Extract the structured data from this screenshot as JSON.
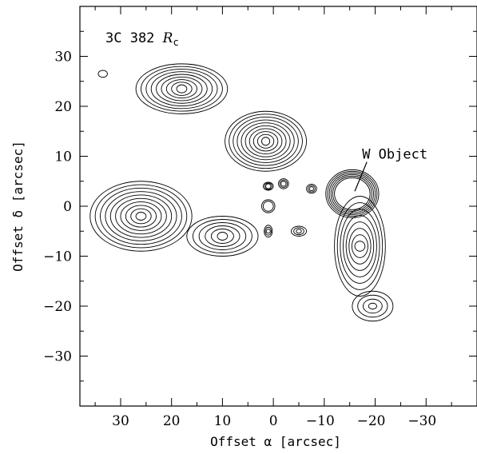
{
  "chart_data": {
    "type": "contour",
    "title_main": "3C 382 ",
    "title_italic": "R",
    "title_sub": "c",
    "xlabel": "Offset α [arcsec]",
    "ylabel": "Offset δ [arcsec]",
    "xlim": [
      38,
      -40
    ],
    "ylim": [
      -40,
      40
    ],
    "xticks_major": [
      30,
      20,
      10,
      0,
      -10,
      -20,
      -30
    ],
    "xticks_labels": [
      "30",
      "20",
      "10",
      "0",
      "−10",
      "−20",
      "−30"
    ],
    "yticks_major": [
      30,
      20,
      10,
      0,
      -10,
      -20,
      -30
    ],
    "yticks_labels": [
      "30",
      "20",
      "10",
      "0",
      "−10",
      "−20",
      "−30"
    ],
    "annotation": {
      "text": "W Object",
      "point": [
        -16,
        3
      ],
      "text_at": [
        -19,
        9.5
      ]
    },
    "features": [
      {
        "name": "NE lobe upper",
        "center": [
          18,
          23.5
        ],
        "rx": [
          1,
          9
        ],
        "ry": [
          0.8,
          5
        ],
        "levels": 9
      },
      {
        "name": "NE lobe knot",
        "center": [
          1.5,
          13
        ],
        "rx": [
          0.8,
          8
        ],
        "ry": [
          0.8,
          6
        ],
        "levels": 10
      },
      {
        "name": "E lobe",
        "center": [
          26,
          -2
        ],
        "rx": [
          1,
          10
        ],
        "ry": [
          0.8,
          7
        ],
        "levels": 10
      },
      {
        "name": "E inner lobe",
        "center": [
          10,
          -6
        ],
        "rx": [
          1,
          7
        ],
        "ry": [
          0.8,
          4
        ],
        "levels": 6
      },
      {
        "name": "W object",
        "center": [
          -15.5,
          2.5
        ],
        "rx": [
          3.5,
          5.2
        ],
        "ry": [
          3.2,
          4.8
        ],
        "levels": 6
      },
      {
        "name": "SW tail",
        "center": [
          -17,
          -8
        ],
        "rx": [
          1,
          5
        ],
        "ry": [
          1,
          10
        ],
        "levels": 8
      },
      {
        "name": "SW knot",
        "center": [
          -19.5,
          -20
        ],
        "rx": [
          0.8,
          4
        ],
        "ry": [
          0.6,
          3
        ],
        "levels": 4
      },
      {
        "name": "nucleus",
        "center": [
          1,
          0
        ],
        "rx": [
          1,
          1.3
        ],
        "ry": [
          1,
          1.3
        ],
        "levels": 2
      },
      {
        "name": "small clump 1",
        "center": [
          -7.5,
          3.5
        ],
        "rx": [
          0.4,
          1
        ],
        "ry": [
          0.4,
          0.9
        ],
        "levels": 3
      },
      {
        "name": "small clump 2",
        "center": [
          -5,
          -5
        ],
        "rx": [
          0.5,
          1.5
        ],
        "ry": [
          0.4,
          1
        ],
        "levels": 3
      },
      {
        "name": "small clump 3",
        "center": [
          -2,
          4.5
        ],
        "rx": [
          0.5,
          1
        ],
        "ry": [
          0.5,
          1
        ],
        "levels": 3
      },
      {
        "name": "small clump 4",
        "center": [
          1,
          4
        ],
        "rx": [
          0.5,
          1
        ],
        "ry": [
          0.5,
          0.8
        ],
        "levels": 3
      },
      {
        "name": "small clump 5",
        "center": [
          1,
          -5
        ],
        "rx": [
          0.4,
          0.8
        ],
        "ry": [
          0.4,
          1.2
        ],
        "levels": 3
      },
      {
        "name": "far knot",
        "center": [
          33.5,
          26.5
        ],
        "rx": [
          0.5,
          0.9
        ],
        "ry": [
          0.4,
          0.7
        ],
        "levels": 1
      }
    ]
  }
}
